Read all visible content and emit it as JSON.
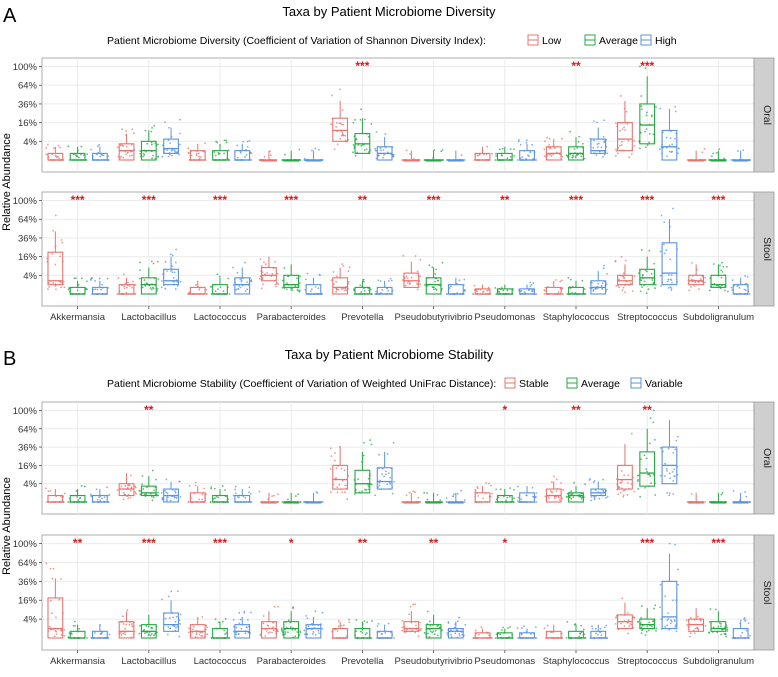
{
  "colors": {
    "low": "#e8746f",
    "average": "#27a845",
    "high": "#5b93e0",
    "star": "#d7191c",
    "strip": "#cfcfcf",
    "panel_bg": "#ffffff",
    "grid": "#ebebeb",
    "axis": "#4d4d4d"
  },
  "chart_data": [
    {
      "type": "box",
      "panel_letter": "A",
      "title": "Taxa by Patient Microbiome Diversity",
      "legend_title": "Patient Microbiome Diversity (Coefficient of Variation of Shannon Diversity Index):",
      "legend_entries": [
        "Low",
        "Average",
        "High"
      ],
      "ylabel": "Relative Abundance",
      "y_scale": "sqrt",
      "y_ticks": [
        "100%",
        "64%",
        "36%",
        "16%",
        "4%"
      ],
      "y_tick_values": [
        100,
        64,
        36,
        16,
        4
      ],
      "categories": [
        "Akkermansia",
        "Lactobacillus",
        "Lactococcus",
        "Parabacteroides",
        "Prevotella",
        "Pseudobutyrivibrio",
        "Pseudomonas",
        "Staphylococcus",
        "Streptococcus",
        "Subdoligranulum"
      ],
      "facets": [
        {
          "label": "Oral",
          "significance": [
            "",
            "",
            "",
            "",
            "***",
            "",
            "",
            "**",
            "***",
            ""
          ],
          "boxes": [
            [
              [
                0,
                0,
                0,
                0.5,
                2
              ],
              [
                0,
                0,
                0,
                0.5,
                2
              ],
              [
                0,
                0,
                0,
                0.5,
                2
              ]
            ],
            [
              [
                0,
                0,
                1,
                3,
                8
              ],
              [
                0,
                0,
                1,
                4,
                10
              ],
              [
                0,
                0.5,
                1.5,
                5,
                12
              ]
            ],
            [
              [
                0,
                0,
                0,
                1,
                3
              ],
              [
                0,
                0,
                0,
                1,
                3
              ],
              [
                0,
                0,
                0,
                1,
                3
              ]
            ],
            [
              [
                0,
                0,
                0,
                0,
                1
              ],
              [
                0,
                0,
                0,
                0,
                1
              ],
              [
                0,
                0,
                0,
                0,
                1
              ]
            ],
            [
              [
                1,
                4,
                10,
                20,
                40
              ],
              [
                0,
                0.5,
                3,
                8,
                20
              ],
              [
                0,
                0,
                0.5,
                2,
                6
              ]
            ],
            [
              [
                0,
                0,
                0,
                0,
                1
              ],
              [
                0,
                0,
                0,
                0,
                1
              ],
              [
                0,
                0,
                0,
                0,
                1
              ]
            ],
            [
              [
                0,
                0,
                0,
                0.5,
                2
              ],
              [
                0,
                0,
                0,
                0.5,
                2
              ],
              [
                0,
                0,
                0,
                1,
                3
              ]
            ],
            [
              [
                0,
                0,
                0.5,
                2,
                5
              ],
              [
                0,
                0,
                0.5,
                2,
                6
              ],
              [
                0,
                0.5,
                1,
                5,
                12
              ]
            ],
            [
              [
                0,
                1,
                5,
                16,
                40
              ],
              [
                0,
                3,
                14,
                36,
                80
              ],
              [
                0,
                0,
                2,
                10,
                30
              ]
            ],
            [
              [
                0,
                0,
                0,
                0,
                1
              ],
              [
                0,
                0,
                0,
                0,
                1
              ],
              [
                0,
                0,
                0,
                0,
                1
              ]
            ]
          ]
        },
        {
          "label": "Stool",
          "significance": [
            "***",
            "***",
            "***",
            "***",
            "**",
            "***",
            "**",
            "***",
            "***",
            "***"
          ],
          "boxes": [
            [
              [
                0,
                1,
                2,
                20,
                45
              ],
              [
                0,
                0,
                0,
                0.5,
                2
              ],
              [
                0,
                0,
                0,
                0.5,
                2
              ]
            ],
            [
              [
                0,
                0,
                0,
                1,
                3
              ],
              [
                0,
                0,
                1,
                3,
                8
              ],
              [
                0,
                1,
                2,
                7,
                16
              ]
            ],
            [
              [
                0,
                0,
                0,
                0.5,
                2
              ],
              [
                0,
                0,
                0,
                1,
                3
              ],
              [
                0,
                0,
                1,
                3,
                8
              ]
            ],
            [
              [
                0,
                2,
                4,
                8,
                16
              ],
              [
                0,
                0.5,
                1,
                4,
                10
              ],
              [
                0,
                0,
                0,
                1,
                3
              ]
            ],
            [
              [
                0,
                0,
                0.5,
                3,
                8
              ],
              [
                0,
                0,
                0,
                0.5,
                2
              ],
              [
                0,
                0,
                0,
                0.5,
                2
              ]
            ],
            [
              [
                0,
                0.5,
                2,
                5,
                12
              ],
              [
                0,
                0,
                1,
                3,
                8
              ],
              [
                0,
                0,
                0,
                1,
                3
              ]
            ],
            [
              [
                0,
                0,
                0,
                0.3,
                1
              ],
              [
                0,
                0,
                0,
                0.3,
                1
              ],
              [
                0,
                0,
                0,
                0.3,
                1
              ]
            ],
            [
              [
                0,
                0,
                0,
                0.5,
                2
              ],
              [
                0,
                0,
                0,
                0.5,
                2
              ],
              [
                0,
                0,
                0.5,
                2,
                6
              ]
            ],
            [
              [
                0,
                1,
                2,
                4,
                10
              ],
              [
                0,
                1,
                3,
                7,
                16
              ],
              [
                0,
                1,
                5,
                30,
                64
              ]
            ],
            [
              [
                0,
                1,
                2,
                4,
                10
              ],
              [
                0,
                0.5,
                1,
                4,
                10
              ],
              [
                0,
                0,
                0,
                1,
                3
              ]
            ]
          ]
        }
      ]
    },
    {
      "type": "box",
      "panel_letter": "B",
      "title": "Taxa by Patient Microbiome Stability",
      "legend_title": "Patient Microbiome Stability (Coefficient of Variation of Weighted UniFrac Distance):",
      "legend_entries": [
        "Stable",
        "Average",
        "Variable"
      ],
      "ylabel": "Relative Abundance",
      "y_scale": "sqrt",
      "y_ticks": [
        "100%",
        "64%",
        "36%",
        "16%",
        "4%"
      ],
      "y_tick_values": [
        100,
        64,
        36,
        16,
        4
      ],
      "categories": [
        "Akkermansia",
        "Lactobacillus",
        "Lactococcus",
        "Parabacteroides",
        "Prevotella",
        "Pseudobutyrivibrio",
        "Pseudomonas",
        "Staphylococcus",
        "Streptococcus",
        "Subdoligranulum"
      ],
      "facets": [
        {
          "label": "Oral",
          "significance": [
            "",
            "**",
            "",
            "",
            "",
            "",
            "*",
            "**",
            "**",
            ""
          ],
          "boxes": [
            [
              [
                0,
                0,
                0,
                0.5,
                2
              ],
              [
                0,
                0,
                0,
                0.5,
                2
              ],
              [
                0,
                0,
                0,
                0.5,
                2
              ]
            ],
            [
              [
                0,
                0.5,
                2,
                4,
                10
              ],
              [
                0,
                0.5,
                1,
                3,
                8
              ],
              [
                0,
                0,
                0.5,
                2,
                5
              ]
            ],
            [
              [
                0,
                0,
                0,
                1,
                3
              ],
              [
                0,
                0,
                0,
                0.5,
                2
              ],
              [
                0,
                0,
                0,
                0.5,
                2
              ]
            ],
            [
              [
                0,
                0,
                0,
                0,
                1
              ],
              [
                0,
                0,
                0,
                0,
                1
              ],
              [
                0,
                0,
                0,
                0,
                1
              ]
            ],
            [
              [
                0,
                2,
                6,
                16,
                36
              ],
              [
                0,
                1,
                4,
                12,
                30
              ],
              [
                0,
                2,
                5,
                14,
                30
              ]
            ],
            [
              [
                0,
                0,
                0,
                0,
                1
              ],
              [
                0,
                0,
                0,
                0,
                1
              ],
              [
                0,
                0,
                0,
                0,
                1
              ]
            ],
            [
              [
                0,
                0,
                0,
                1,
                3
              ],
              [
                0,
                0,
                0,
                0.5,
                2
              ],
              [
                0,
                0,
                0,
                1,
                3
              ]
            ],
            [
              [
                0,
                0,
                0.5,
                2,
                5
              ],
              [
                0,
                0,
                0.5,
                1,
                3
              ],
              [
                0,
                0.5,
                1,
                2,
                5
              ]
            ],
            [
              [
                0,
                2,
                6,
                16,
                40
              ],
              [
                0,
                3,
                10,
                30,
                64
              ],
              [
                0,
                4,
                16,
                36,
                80
              ]
            ],
            [
              [
                0,
                0,
                0,
                0,
                1
              ],
              [
                0,
                0,
                0,
                0,
                1
              ],
              [
                0,
                0,
                0,
                0,
                1
              ]
            ]
          ]
        },
        {
          "label": "Stool",
          "significance": [
            "**",
            "***",
            "***",
            "*",
            "**",
            "**",
            "*",
            "",
            "***",
            "***"
          ],
          "boxes": [
            [
              [
                0,
                0,
                1,
                18,
                40
              ],
              [
                0,
                0,
                0,
                0.5,
                2
              ],
              [
                0,
                0,
                0,
                0.5,
                2
              ]
            ],
            [
              [
                0,
                0,
                0.5,
                3,
                8
              ],
              [
                0,
                0,
                0.5,
                2,
                6
              ],
              [
                0,
                0.5,
                2,
                7,
                16
              ]
            ],
            [
              [
                0,
                0,
                0.5,
                2,
                5
              ],
              [
                0,
                0,
                0,
                1,
                3
              ],
              [
                0,
                0,
                0.5,
                2,
                5
              ]
            ],
            [
              [
                0,
                0,
                1,
                3,
                8
              ],
              [
                0,
                0,
                1,
                3,
                8
              ],
              [
                0,
                0,
                1,
                2,
                5
              ]
            ],
            [
              [
                0,
                0,
                0,
                1,
                3
              ],
              [
                0,
                0,
                0,
                1,
                3
              ],
              [
                0,
                0,
                0,
                0.5,
                2
              ]
            ],
            [
              [
                0,
                0.5,
                1,
                3,
                8
              ],
              [
                0,
                0,
                1,
                2,
                6
              ],
              [
                0,
                0,
                0.5,
                1,
                3
              ]
            ],
            [
              [
                0,
                0,
                0,
                0.3,
                1
              ],
              [
                0,
                0,
                0,
                0.3,
                1
              ],
              [
                0,
                0,
                0,
                0.3,
                1
              ]
            ],
            [
              [
                0,
                0,
                0,
                0.5,
                2
              ],
              [
                0,
                0,
                0,
                0.5,
                2
              ],
              [
                0,
                0,
                0,
                0.5,
                2
              ]
            ],
            [
              [
                0,
                1,
                3,
                6,
                14
              ],
              [
                0,
                1,
                2,
                4,
                10
              ],
              [
                0,
                1,
                5,
                36,
                80
              ]
            ],
            [
              [
                0,
                0.5,
                2,
                4,
                10
              ],
              [
                0,
                0.5,
                1,
                3,
                8
              ],
              [
                0,
                0,
                0,
                1,
                3
              ]
            ]
          ]
        }
      ]
    }
  ]
}
